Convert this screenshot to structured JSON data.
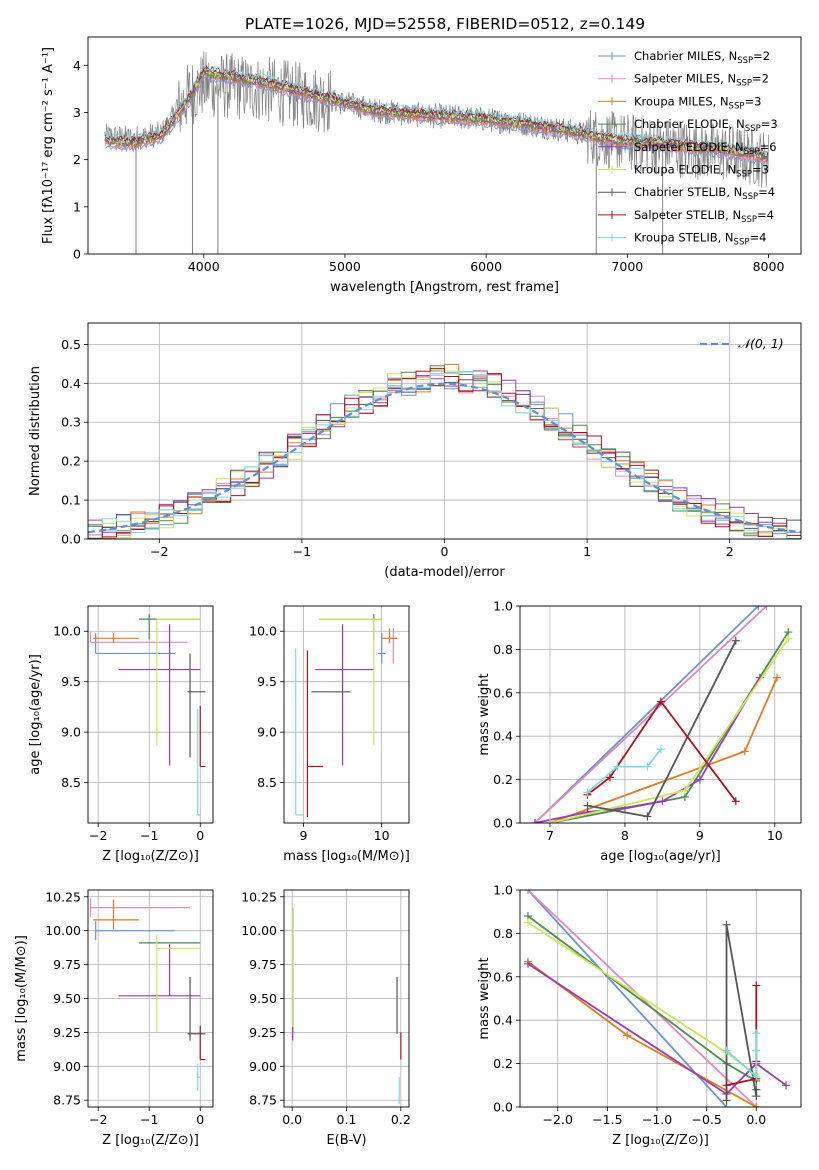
{
  "figure_title": "PLATE=1026, MJD=52558, FIBERID=0512, z=0.149",
  "colors": {
    "Chabrier MILES": "#6b93d0",
    "Salpeter MILES": "#e08ac0",
    "Kroupa MILES": "#e07b22",
    "Chabrier ELODIE": "#4f8a4f",
    "Salpeter ELODIE": "#9a3cb0",
    "Kroupa ELODIE": "#c8e85a",
    "Chabrier STELIB": "#555555",
    "Salpeter STELIB": "#b01018",
    "Kroupa STELIB": "#7fd8e0"
  },
  "chart_data": [
    {
      "id": "spectrum",
      "type": "line",
      "title": "PLATE=1026, MJD=52558, FIBERID=0512, z=0.149",
      "xlabel": "wavelength [Angstrom, rest frame]",
      "ylabel": "Flux [fλ10⁻¹⁷ erg cm⁻² s⁻¹ A⁻¹]",
      "xlim": [
        3180,
        8230
      ],
      "ylim": [
        0,
        4.6
      ],
      "xticks": [
        4000,
        5000,
        6000,
        7000,
        8000
      ],
      "yticks": [
        0,
        1,
        2,
        3,
        4
      ],
      "legend_position": "upper-right",
      "legend": [
        {
          "model": "Chabrier MILES",
          "label": "Chabrier MILES, N",
          "nssp": "=2"
        },
        {
          "model": "Salpeter MILES",
          "label": "Salpeter MILES, N",
          "nssp": "=2"
        },
        {
          "model": "Kroupa MILES",
          "label": "Kroupa MILES, N",
          "nssp": "=3"
        },
        {
          "model": "Chabrier ELODIE",
          "label": "Chabrier ELODIE, N",
          "nssp": "=3"
        },
        {
          "model": "Salpeter ELODIE",
          "label": "Salpeter ELODIE, N",
          "nssp": "=6"
        },
        {
          "model": "Kroupa ELODIE",
          "label": "Kroupa ELODIE, N",
          "nssp": "=3"
        },
        {
          "model": "Chabrier STELIB",
          "label": "Chabrier STELIB, N",
          "nssp": "=4"
        },
        {
          "model": "Salpeter STELIB",
          "label": "Salpeter STELIB, N",
          "nssp": "=4"
        },
        {
          "model": "Kroupa STELIB",
          "label": "Kroupa STELIB, N",
          "nssp": "=4"
        }
      ],
      "data_continuum": [
        [
          3300,
          2.5
        ],
        [
          3500,
          2.45
        ],
        [
          3700,
          2.55
        ],
        [
          3900,
          3.4
        ],
        [
          4000,
          3.6
        ],
        [
          4200,
          3.55
        ],
        [
          4400,
          3.5
        ],
        [
          4600,
          3.4
        ],
        [
          4800,
          3.3
        ],
        [
          5000,
          3.2
        ],
        [
          5200,
          3.05
        ],
        [
          5500,
          2.95
        ],
        [
          5800,
          2.9
        ],
        [
          6000,
          2.85
        ],
        [
          6300,
          2.75
        ],
        [
          6600,
          2.6
        ],
        [
          6900,
          2.4
        ],
        [
          7200,
          2.3
        ],
        [
          7500,
          2.2
        ],
        [
          7700,
          2.15
        ],
        [
          7900,
          2.05
        ],
        [
          8000,
          2.0
        ]
      ],
      "model_continuum": [
        [
          3300,
          2.4
        ],
        [
          3500,
          2.35
        ],
        [
          3700,
          2.5
        ],
        [
          3900,
          3.3
        ],
        [
          4000,
          3.85
        ],
        [
          4200,
          3.75
        ],
        [
          4400,
          3.65
        ],
        [
          4600,
          3.5
        ],
        [
          4800,
          3.35
        ],
        [
          5000,
          3.2
        ],
        [
          5200,
          3.05
        ],
        [
          5500,
          2.95
        ],
        [
          5800,
          2.9
        ],
        [
          6000,
          2.85
        ],
        [
          6300,
          2.75
        ],
        [
          6600,
          2.6
        ],
        [
          6900,
          2.4
        ],
        [
          7200,
          2.35
        ],
        [
          7500,
          2.25
        ],
        [
          7700,
          2.2
        ],
        [
          7900,
          2.1
        ],
        [
          8000,
          2.05
        ]
      ],
      "data_noise_amplitude": 0.9,
      "data_color": "#808080"
    },
    {
      "id": "residuals",
      "type": "line",
      "xlabel": "(data-model)/error",
      "ylabel": "Normed distribution",
      "xlim": [
        -2.5,
        2.5
      ],
      "ylim": [
        0,
        0.555
      ],
      "xticks": [
        -2,
        -1,
        0,
        1,
        2
      ],
      "yticks": [
        0.0,
        0.1,
        0.2,
        0.3,
        0.4,
        0.5
      ],
      "legend_label": "𝒩(0, 1)",
      "legend_position": "upper-right",
      "gaussian_color": "#5b8fd6"
    },
    {
      "id": "age_vs_z",
      "type": "scatter",
      "xlabel": "Z [log₁₀(Z/Z⊙)]",
      "ylabel": "age  [log₁₀(age/yr)]",
      "xlim": [
        -2.2,
        0.25
      ],
      "ylim": [
        8.1,
        10.25
      ],
      "xticks": [
        -2,
        -1,
        0
      ],
      "yticks": [
        8.5,
        9.0,
        9.5,
        10.0
      ],
      "points": [
        {
          "model": "Chabrier MILES",
          "x": -2.05,
          "xerr": [
            0,
            1.55
          ],
          "y": 9.78,
          "yerr": [
            0,
            0.2
          ]
        },
        {
          "model": "Salpeter MILES",
          "x": -2.15,
          "xerr": [
            0,
            1.9
          ],
          "y": 9.89,
          "yerr": [
            0,
            0.1
          ]
        },
        {
          "model": "Kroupa MILES",
          "x": -1.7,
          "xerr": [
            0.4,
            0.5
          ],
          "y": 9.93,
          "yerr": [
            0.05,
            0.05
          ]
        },
        {
          "model": "Chabrier ELODIE",
          "x": -1.0,
          "xerr": [
            0.2,
            1.0
          ],
          "y": 10.12,
          "yerr": [
            0.2,
            0.05
          ]
        },
        {
          "model": "Salpeter ELODIE",
          "x": -0.6,
          "xerr": [
            1.0,
            0.6
          ],
          "y": 9.62,
          "yerr": [
            0.95,
            0.45
          ]
        },
        {
          "model": "Kroupa ELODIE",
          "x": -0.85,
          "xerr": [
            0.0,
            0.85
          ],
          "y": 10.12,
          "yerr": [
            1.25,
            0.0
          ]
        },
        {
          "model": "Chabrier STELIB",
          "x": -0.2,
          "xerr": [
            0.05,
            0.3
          ],
          "y": 9.4,
          "yerr": [
            0.65,
            0.38
          ]
        },
        {
          "model": "Salpeter STELIB",
          "x": 0.0,
          "xerr": [
            0.0,
            0.1
          ],
          "y": 8.66,
          "yerr": [
            0.0,
            0.6
          ]
        },
        {
          "model": "Kroupa STELIB",
          "x": -0.05,
          "xerr": [
            0.0,
            0.05
          ],
          "y": 8.18,
          "yerr": [
            0.0,
            1.05
          ]
        }
      ]
    },
    {
      "id": "age_vs_mass",
      "type": "scatter",
      "xlabel": "mass [log₁₀(M/M⊙)]",
      "ylabel": "",
      "xlim": [
        8.75,
        10.35
      ],
      "ylim": [
        8.1,
        10.25
      ],
      "xticks": [
        9,
        10
      ],
      "yticks": [
        8.5,
        9.0,
        9.5,
        10.0
      ],
      "points": [
        {
          "model": "Chabrier MILES",
          "x": 10.0,
          "xerr": [
            0.05,
            0.05
          ],
          "y": 9.78,
          "yerr": [
            0.1,
            0.2
          ]
        },
        {
          "model": "Salpeter MILES",
          "x": 10.15,
          "xerr": [
            0.05,
            0.05
          ],
          "y": 9.93,
          "yerr": [
            0.25,
            0.1
          ]
        },
        {
          "model": "Kroupa MILES",
          "x": 10.1,
          "xerr": [
            0.1,
            0.1
          ],
          "y": 9.93,
          "yerr": [
            0.05,
            0.1
          ]
        },
        {
          "model": "Chabrier ELODIE",
          "x": 9.9,
          "xerr": [
            0.7,
            0.1
          ],
          "y": 10.12,
          "yerr": [
            0.2,
            0.05
          ]
        },
        {
          "model": "Salpeter ELODIE",
          "x": 9.5,
          "xerr": [
            0.35,
            0.4
          ],
          "y": 9.62,
          "yerr": [
            0.95,
            0.45
          ]
        },
        {
          "model": "Kroupa ELODIE",
          "x": 9.9,
          "xerr": [
            0.7,
            0.1
          ],
          "y": 10.12,
          "yerr": [
            1.25,
            0.0
          ]
        },
        {
          "model": "Chabrier STELIB",
          "x": 9.3,
          "xerr": [
            0.2,
            0.3
          ],
          "y": 9.4,
          "yerr": [
            0.0,
            0.0
          ]
        },
        {
          "model": "Salpeter STELIB",
          "x": 9.05,
          "xerr": [
            0.0,
            0.2
          ],
          "y": 8.66,
          "yerr": [
            0.5,
            1.15
          ]
        },
        {
          "model": "Kroupa STELIB",
          "x": 8.9,
          "xerr": [
            0.0,
            0.1
          ],
          "y": 8.18,
          "yerr": [
            0.0,
            1.65
          ]
        }
      ]
    },
    {
      "id": "weight_vs_age",
      "type": "line",
      "xlabel": "age  [log₁₀(age/yr)]",
      "ylabel": "mass weight",
      "xlim": [
        6.6,
        10.35
      ],
      "ylim": [
        0,
        1.0
      ],
      "xticks": [
        7,
        8,
        9,
        10
      ],
      "yticks": [
        0.0,
        0.2,
        0.4,
        0.6,
        0.8,
        1.0
      ],
      "series": [
        {
          "model": "Chabrier MILES",
          "x": [
            6.8,
            9.78
          ],
          "y": [
            0.0,
            1.0
          ]
        },
        {
          "model": "Salpeter MILES",
          "x": [
            6.8,
            9.89
          ],
          "y": [
            0.0,
            1.0
          ]
        },
        {
          "model": "Kroupa MILES",
          "x": [
            7.0,
            9.6,
            10.03
          ],
          "y": [
            0.0,
            0.33,
            0.67
          ]
        },
        {
          "model": "Chabrier ELODIE",
          "x": [
            7.0,
            8.8,
            10.18
          ],
          "y": [
            0.0,
            0.12,
            0.88
          ]
        },
        {
          "model": "Salpeter ELODIE",
          "x": [
            6.8,
            7.5,
            8.0,
            8.5,
            9.0,
            9.8
          ],
          "y": [
            0.0,
            0.05,
            0.07,
            0.1,
            0.2,
            0.67
          ]
        },
        {
          "model": "Kroupa ELODIE",
          "x": [
            7.0,
            8.8,
            10.18
          ],
          "y": [
            0.0,
            0.15,
            0.85
          ]
        },
        {
          "model": "Chabrier STELIB",
          "x": [
            7.5,
            8.3,
            9.48
          ],
          "y": [
            0.08,
            0.03,
            0.84
          ]
        },
        {
          "model": "Salpeter STELIB",
          "x": [
            7.5,
            7.8,
            8.48,
            9.48
          ],
          "y": [
            0.13,
            0.21,
            0.56,
            0.1
          ]
        },
        {
          "model": "Kroupa STELIB",
          "x": [
            7.5,
            7.9,
            8.3,
            8.48
          ],
          "y": [
            0.14,
            0.26,
            0.26,
            0.34
          ]
        }
      ]
    },
    {
      "id": "mass_vs_z",
      "type": "scatter",
      "xlabel": "Z [log₁₀(Z/Z⊙)]",
      "ylabel": "mass [log₁₀(M/M⊙)]",
      "xlim": [
        -2.2,
        0.25
      ],
      "ylim": [
        8.7,
        10.3
      ],
      "xticks": [
        -2,
        -1,
        0
      ],
      "yticks": [
        8.75,
        9.0,
        9.25,
        9.5,
        9.75,
        10.0,
        10.25
      ],
      "points": [
        {
          "model": "Chabrier MILES",
          "x": -2.05,
          "xerr": [
            0,
            1.55
          ],
          "y": 10.0,
          "yerr": [
            0.07,
            0.07
          ]
        },
        {
          "model": "Salpeter MILES",
          "x": -2.15,
          "xerr": [
            0,
            1.95
          ],
          "y": 10.17,
          "yerr": [
            0.07,
            0.07
          ]
        },
        {
          "model": "Kroupa MILES",
          "x": -1.7,
          "xerr": [
            0.4,
            0.5
          ],
          "y": 10.08,
          "yerr": [
            0.07,
            0.15
          ]
        },
        {
          "model": "Chabrier ELODIE",
          "x": -1.0,
          "xerr": [
            0.2,
            1.0
          ],
          "y": 9.91,
          "yerr": [
            0.0,
            0.0
          ]
        },
        {
          "model": "Salpeter ELODIE",
          "x": -0.6,
          "xerr": [
            1.0,
            0.6
          ],
          "y": 9.52,
          "yerr": [
            0.0,
            0.38
          ]
        },
        {
          "model": "Kroupa ELODIE",
          "x": -0.85,
          "xerr": [
            0.0,
            0.85
          ],
          "y": 9.87,
          "yerr": [
            0.62,
            0.1
          ]
        },
        {
          "model": "Chabrier STELIB",
          "x": -0.2,
          "xerr": [
            0.05,
            0.3
          ],
          "y": 9.24,
          "yerr": [
            0.05,
            0.42
          ]
        },
        {
          "model": "Salpeter STELIB",
          "x": 0.0,
          "xerr": [
            0.0,
            0.1
          ],
          "y": 9.05,
          "yerr": [
            0.0,
            0.25
          ]
        },
        {
          "model": "Kroupa STELIB",
          "x": -0.05,
          "xerr": [
            0.0,
            0.05
          ],
          "y": 8.92,
          "yerr": [
            0.1,
            0.1
          ]
        }
      ]
    },
    {
      "id": "mass_vs_ebv",
      "type": "scatter",
      "xlabel": "E(B-V)",
      "ylabel": "",
      "xlim": [
        -0.015,
        0.215
      ],
      "ylim": [
        8.7,
        10.3
      ],
      "xticks": [
        0.0,
        0.1,
        0.2
      ],
      "yticks": [
        8.75,
        9.0,
        9.25,
        9.5,
        9.75,
        10.0,
        10.25
      ],
      "points": [
        {
          "model": "Kroupa ELODIE",
          "x": 0.002,
          "y": 9.87,
          "yerr": [
            0.62,
            0.3
          ]
        },
        {
          "model": "Salpeter ELODIE",
          "x": 0.001,
          "y": 9.24,
          "yerr": [
            0.05,
            0.05
          ]
        },
        {
          "model": "Chabrier STELIB",
          "x": 0.193,
          "y": 9.24,
          "yerr": [
            0.0,
            0.42
          ]
        },
        {
          "model": "Salpeter STELIB",
          "x": 0.2,
          "y": 9.05,
          "yerr": [
            0.0,
            0.2
          ]
        },
        {
          "model": "Kroupa STELIB",
          "x": 0.197,
          "y": 8.92,
          "yerr": [
            0.2,
            0.0
          ]
        }
      ]
    },
    {
      "id": "weight_vs_z",
      "type": "line",
      "xlabel": "Z [log₁₀(Z/Z⊙)]",
      "ylabel": "mass weight",
      "xlim": [
        -2.38,
        0.45
      ],
      "ylim": [
        0,
        1.0
      ],
      "xticks": [
        -2.0,
        -1.5,
        -1.0,
        -0.5,
        0.0
      ],
      "yticks": [
        0.0,
        0.2,
        0.4,
        0.6,
        0.8,
        1.0
      ],
      "series": [
        {
          "model": "Chabrier MILES",
          "x": [
            -2.3,
            -0.3
          ],
          "y": [
            1.0,
            0.0
          ]
        },
        {
          "model": "Salpeter MILES",
          "x": [
            -2.3,
            0.0
          ],
          "y": [
            1.0,
            0.0
          ]
        },
        {
          "model": "Kroupa MILES",
          "x": [
            -2.3,
            -1.3,
            0.0
          ],
          "y": [
            0.67,
            0.33,
            0.0
          ]
        },
        {
          "model": "Chabrier ELODIE",
          "x": [
            -2.3,
            -0.3,
            0.0
          ],
          "y": [
            0.88,
            0.2,
            0.12
          ]
        },
        {
          "model": "Salpeter ELODIE",
          "x": [
            -2.3,
            -0.3,
            0.0,
            0.3
          ],
          "y": [
            0.66,
            0.06,
            0.2,
            0.1
          ]
        },
        {
          "model": "Kroupa ELODIE",
          "x": [
            -2.3,
            -0.3,
            0.0
          ],
          "y": [
            0.85,
            0.25,
            0.15
          ]
        },
        {
          "model": "Chabrier STELIB",
          "x": [
            -0.3,
            -0.3,
            0.0,
            0.0
          ],
          "y": [
            0.03,
            0.84,
            0.05,
            0.08
          ]
        },
        {
          "model": "Salpeter STELIB",
          "x": [
            -0.3,
            0.0,
            0.0,
            0.0
          ],
          "y": [
            0.1,
            0.13,
            0.56,
            0.21
          ]
        },
        {
          "model": "Kroupa STELIB",
          "x": [
            -0.3,
            0.0,
            0.0,
            0.0
          ],
          "y": [
            0.26,
            0.14,
            0.34,
            0.26
          ]
        }
      ]
    }
  ]
}
